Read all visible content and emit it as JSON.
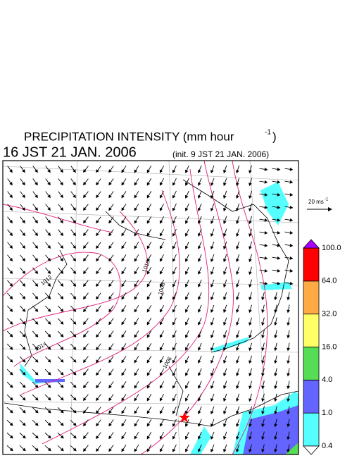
{
  "header": {
    "title": "PRECIPITATION INTENSITY (mm hour",
    "title_exponent": "-1",
    "title_close": ")",
    "valid_time": "16 JST 21 JAN. 2006",
    "init_time": "(init. 9 JST 21 JAN. 2006)"
  },
  "reference_vector": {
    "label": "20 ms",
    "label_exponent": "-1"
  },
  "contour_labels": [
    "1014",
    "1012",
    "1010",
    "1008",
    "1006"
  ],
  "colorbar": {
    "levels": [
      0.4,
      {
        "value": 1,
        "label": "1.0"
      },
      {
        "value": 4,
        "label": "4.0"
      },
      {
        "value": 16,
        "label": "16.0"
      },
      {
        "value": 32,
        "label": "32.0"
      },
      {
        "value": 64,
        "label": "64.0"
      },
      {
        "value": 100,
        "label": "100.0"
      }
    ],
    "colors": [
      "#55ffff",
      "#6464ff",
      "#55dd55",
      "#ffff66",
      "#ffaa44",
      "#ff0000"
    ],
    "under_color": "#ffffff",
    "over_color": "#aa00ff"
  }
}
